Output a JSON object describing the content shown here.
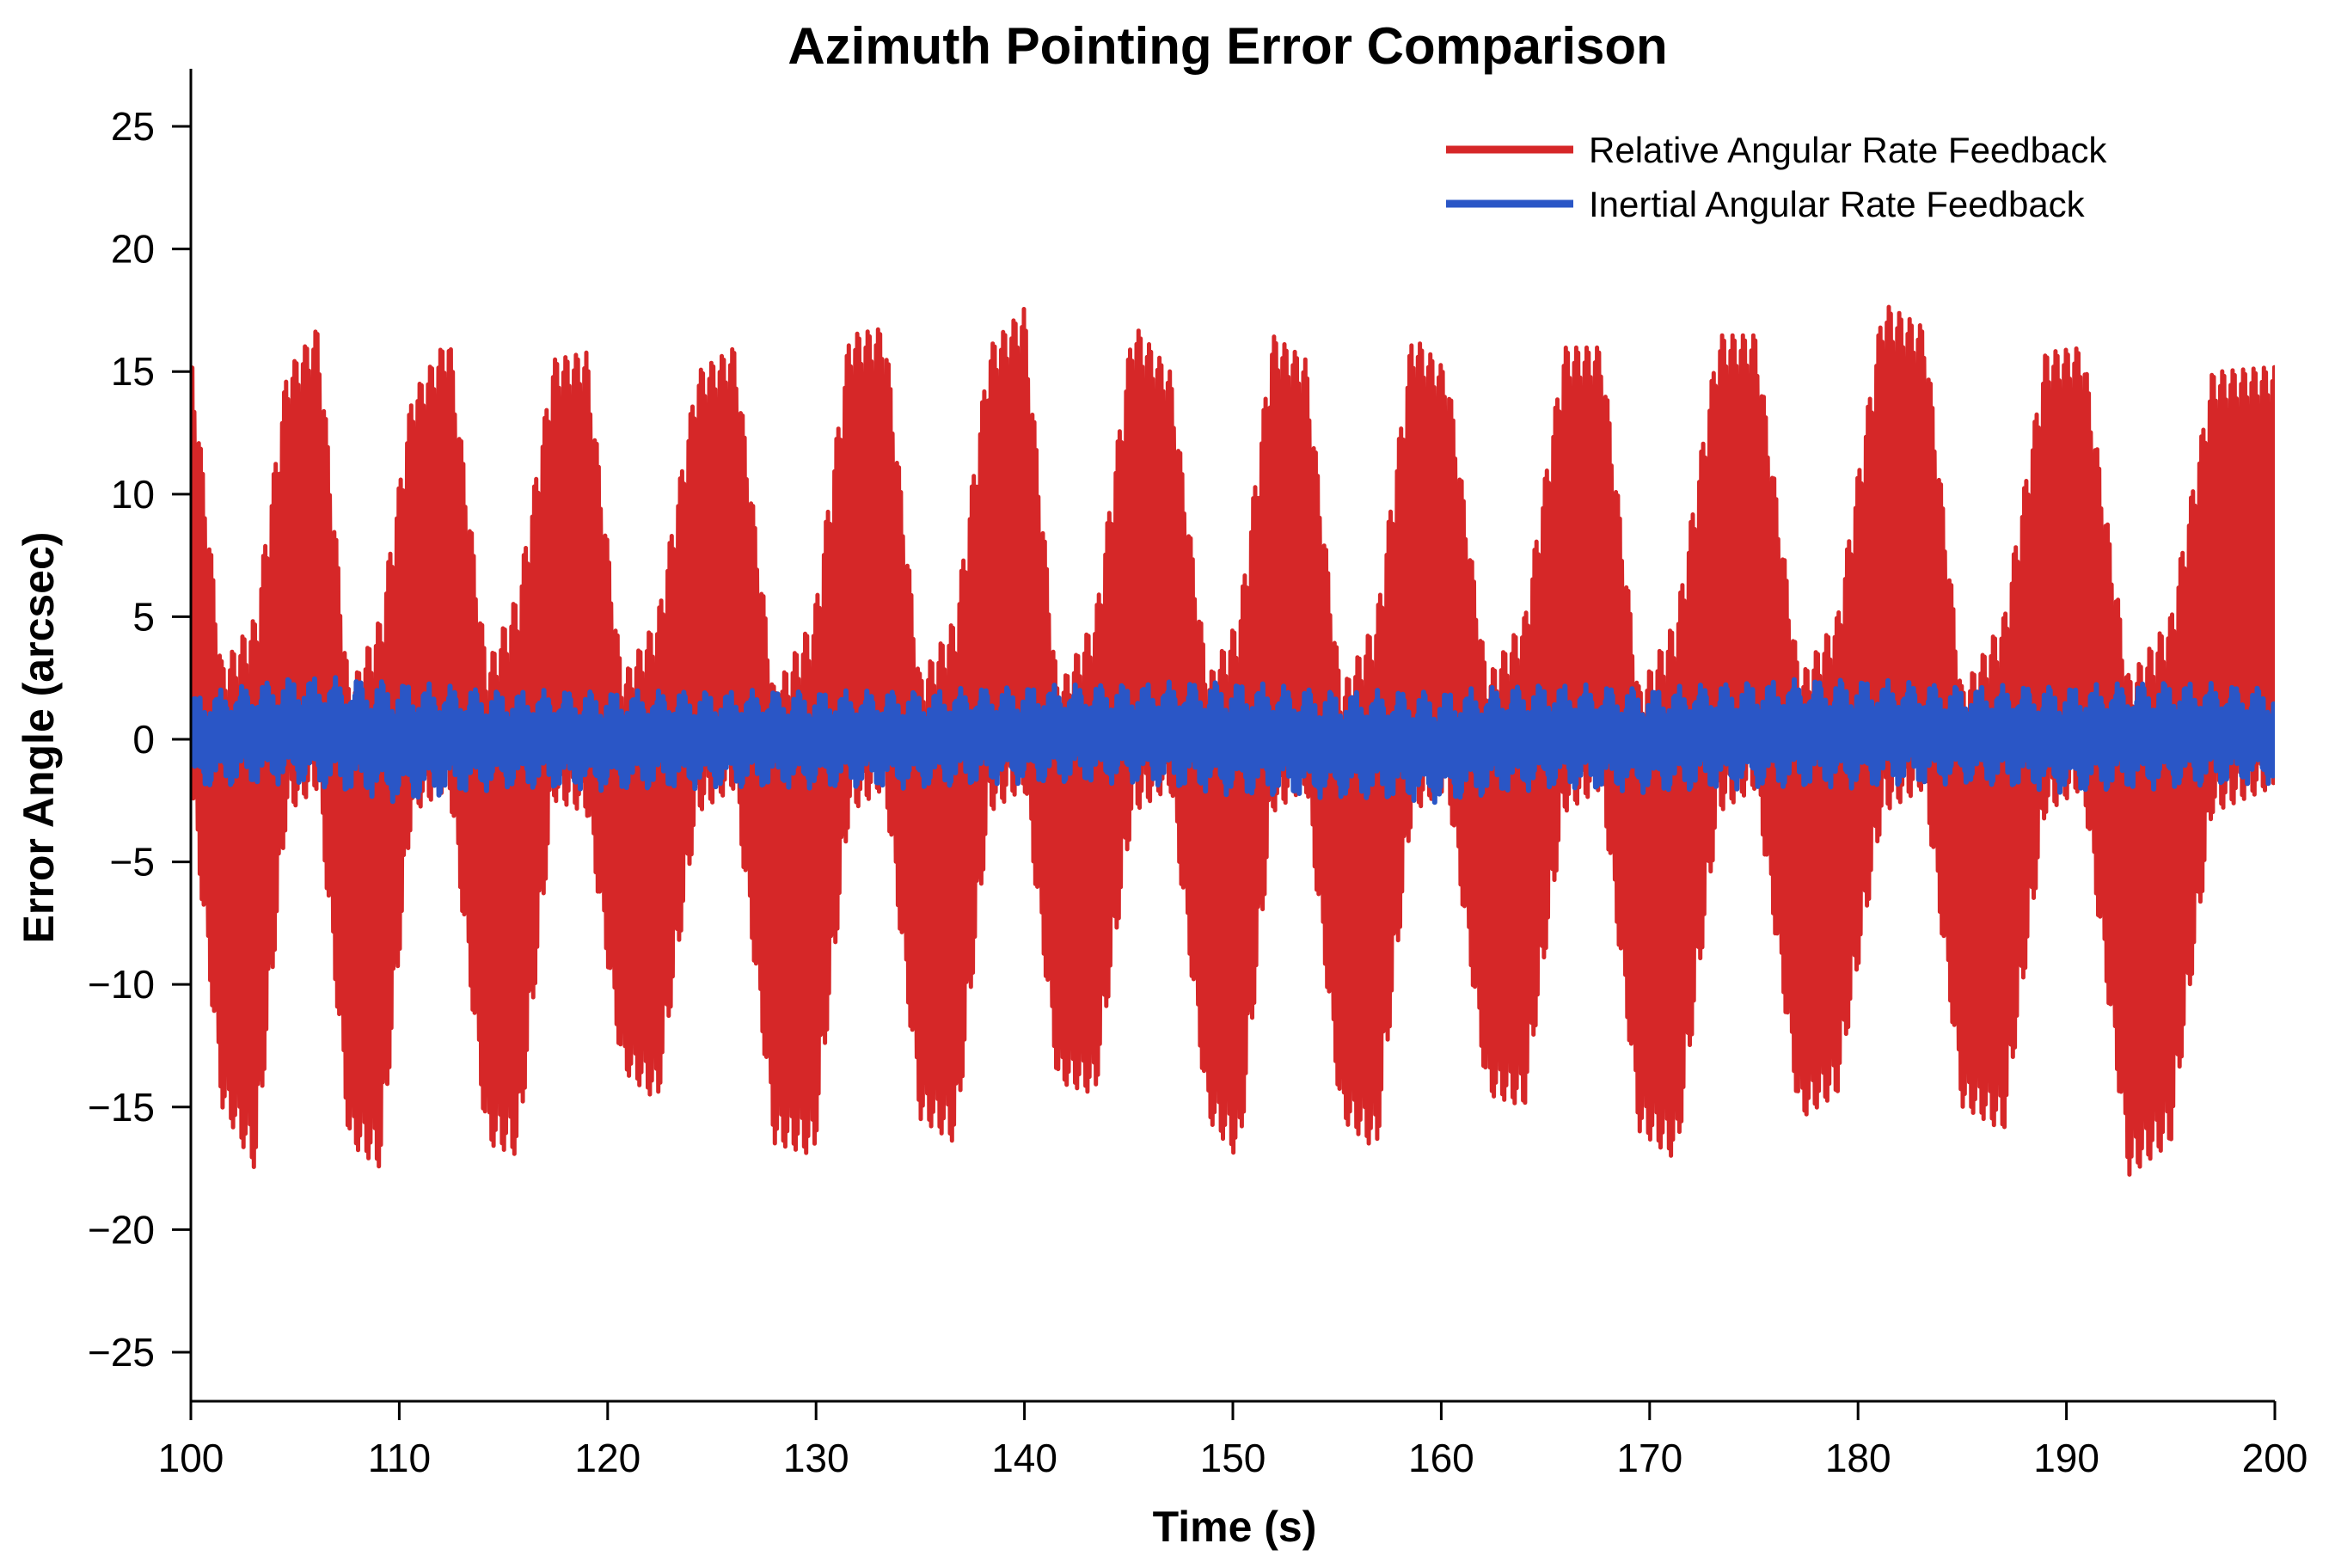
{
  "chart_data": {
    "type": "line",
    "title": "Azimuth Pointing Error Comparison",
    "xlabel": "Time (s)",
    "ylabel": "Error Angle (arcsec)",
    "xlim": [
      100,
      200
    ],
    "ylim": [
      -27,
      27
    ],
    "xticks": [
      100,
      110,
      120,
      130,
      140,
      150,
      160,
      170,
      180,
      190,
      200
    ],
    "xtick_labels": [
      "100",
      "110",
      "120",
      "130",
      "140",
      "150",
      "160",
      "170",
      "180",
      "190",
      "200"
    ],
    "yticks": [
      25,
      20,
      15,
      10,
      5,
      0,
      -5,
      -10,
      -15,
      -20,
      -25
    ],
    "ytick_labels": [
      "25",
      "20",
      "15",
      "10",
      "5",
      "0",
      "−5",
      "−10",
      "−15",
      "−20",
      "−25"
    ],
    "grid": false,
    "legend_position": "top-right",
    "series": [
      {
        "name": "Relative Angular Rate Feedback",
        "color": "#d62728",
        "description_envelope": "oscillation ~0.17 Hz with fast ripple",
        "x": [
          100,
          101.5,
          103.1,
          104.6,
          106.1,
          107.6,
          109.1,
          110.6,
          112.4,
          114.2,
          115.7,
          117.4,
          119.0,
          120.7,
          122.4,
          124.3,
          126.1,
          128.0,
          129.9,
          131.6,
          133.3,
          135.0,
          136.7,
          138.3,
          140.0,
          141.6,
          143.4,
          145.2,
          147.0,
          148.8,
          150.3,
          151.9,
          153.5,
          155.2,
          156.9,
          158.6,
          160.3,
          162.2,
          164.0,
          165.9,
          167.7,
          169.5,
          171.3,
          173.3,
          175.1,
          177.2,
          179.0,
          181.2,
          183.2,
          185.0,
          187.0,
          189.0,
          190.8,
          193.0,
          195.0,
          197.0,
          199.8
        ],
        "upper": [
          16.0,
          3.0,
          5.0,
          15.0,
          16.8,
          2.0,
          5.0,
          14.0,
          16.5,
          3.0,
          6.0,
          15.5,
          15.8,
          2.5,
          5.0,
          15.0,
          16.0,
          2.0,
          5.0,
          16.5,
          16.8,
          2.5,
          5.0,
          16.0,
          17.6,
          2.0,
          5.0,
          17.0,
          15.0,
          2.5,
          5.0,
          16.5,
          15.5,
          2.0,
          5.0,
          16.5,
          15.0,
          2.5,
          5.0,
          16.0,
          16.0,
          2.0,
          5.0,
          16.5,
          16.5,
          2.5,
          5.0,
          17.8,
          16.8,
          2.0,
          5.0,
          15.8,
          16.0,
          2.5,
          5.0,
          15.0,
          15.2
        ],
        "lower": [
          -2.0,
          -15.0,
          -17.6,
          -3.0,
          -2.0,
          -16.5,
          -17.5,
          -3.0,
          -2.0,
          -16.5,
          -17.0,
          -2.5,
          -3.0,
          -13.5,
          -14.8,
          -3.0,
          -2.0,
          -16.5,
          -17.0,
          -3.0,
          -2.0,
          -15.5,
          -16.5,
          -3.0,
          -2.0,
          -14.0,
          -14.5,
          -3.0,
          -2.0,
          -15.5,
          -17.2,
          -3.0,
          -2.0,
          -15.5,
          -16.8,
          -3.0,
          -2.0,
          -14.5,
          -15.0,
          -3.0,
          -2.0,
          -16.0,
          -17.2,
          -3.0,
          -2.0,
          -15.5,
          -14.5,
          -3.0,
          -2.0,
          -15.0,
          -16.0,
          -3.0,
          -2.0,
          -17.8,
          -16.5,
          -3.0,
          -2.0
        ]
      },
      {
        "name": "Inertial Angular Rate Feedback",
        "color": "#2a56c6",
        "x": [
          100,
          105,
          110,
          115,
          120,
          125,
          130,
          135,
          140,
          145,
          150,
          155,
          160,
          165,
          170,
          175,
          180,
          185,
          190,
          195,
          200
        ],
        "upper": [
          1.8,
          2.6,
          2.4,
          2.0,
          2.0,
          2.0,
          2.0,
          2.0,
          2.2,
          2.3,
          2.4,
          2.0,
          2.0,
          2.3,
          2.1,
          2.4,
          2.5,
          2.2,
          2.2,
          2.4,
          2.1
        ],
        "lower": [
          -2.0,
          -1.8,
          -2.6,
          -2.0,
          -2.1,
          -2.0,
          -2.0,
          -2.0,
          -1.8,
          -1.8,
          -2.3,
          -2.4,
          -2.6,
          -2.0,
          -2.2,
          -2.0,
          -2.0,
          -1.8,
          -2.2,
          -2.0,
          -1.8
        ]
      }
    ]
  }
}
